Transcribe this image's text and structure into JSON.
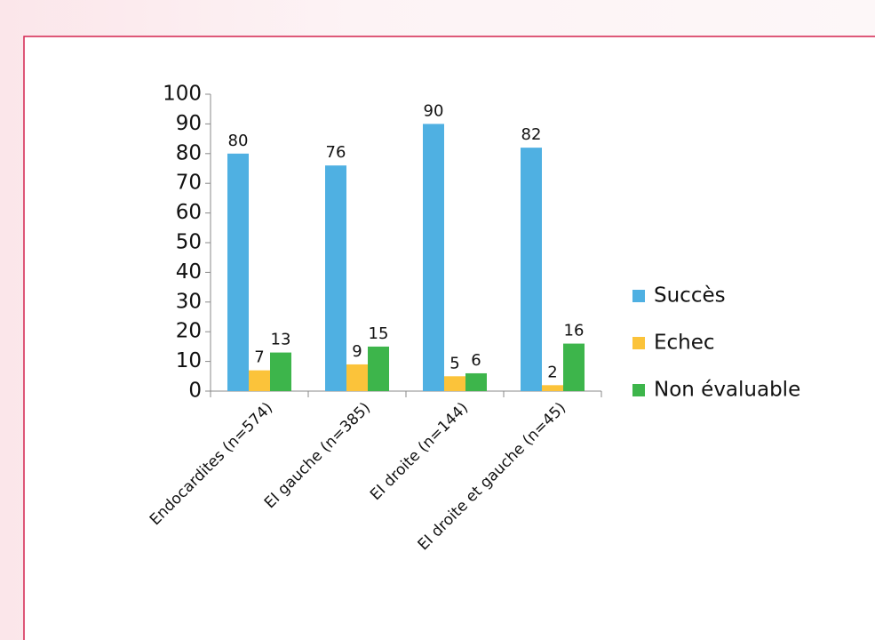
{
  "chart_data": {
    "type": "bar",
    "categories": [
      "Endocardites (n=574)",
      "EI gauche (n=385)",
      "EI droite (n=144)",
      "EI droite et gauche (n=45)"
    ],
    "series": [
      {
        "name": "Succès",
        "color": "#4fb0e2",
        "values": [
          80,
          76,
          90,
          82
        ]
      },
      {
        "name": "Echec",
        "color": "#fbc33a",
        "values": [
          7,
          9,
          5,
          2
        ]
      },
      {
        "name": "Non évaluable",
        "color": "#3db54b",
        "values": [
          13,
          15,
          6,
          16
        ]
      }
    ],
    "ylim": [
      0,
      100
    ],
    "yticks": [
      0,
      10,
      20,
      30,
      40,
      50,
      60,
      70,
      80,
      90,
      100
    ],
    "legend": "right"
  }
}
